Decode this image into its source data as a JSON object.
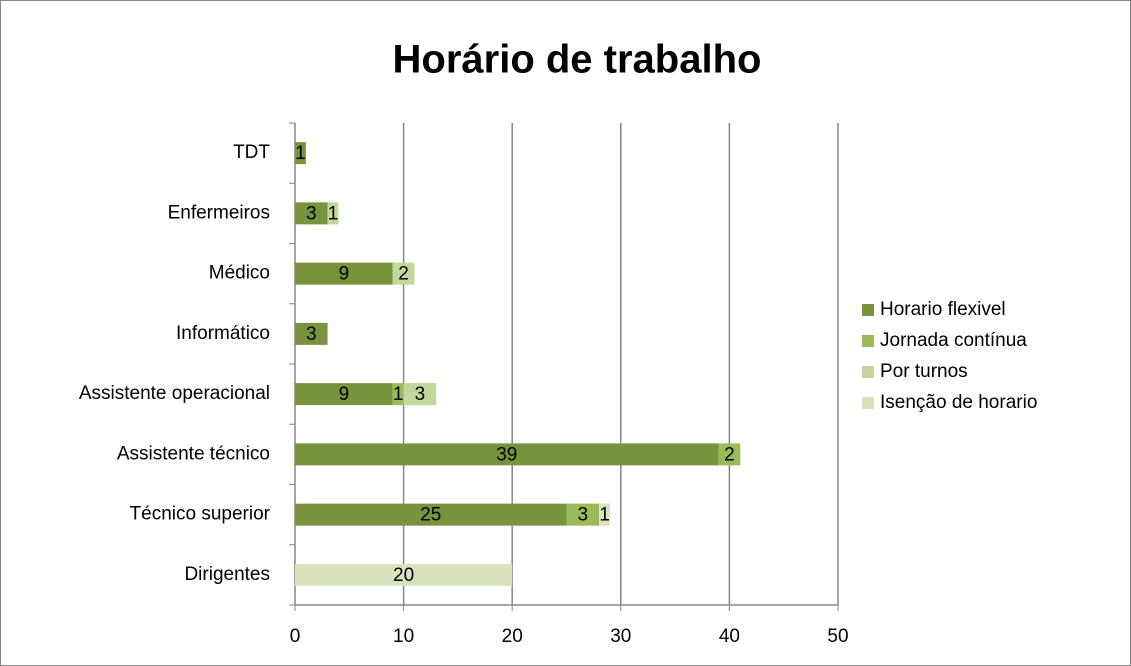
{
  "chart_data": {
    "type": "stacked_barh",
    "title": "Horário de trabalho",
    "categories": [
      "Dirigentes",
      "Técnico superior",
      "Assistente técnico",
      "Assistente operacional",
      "Informático",
      "Médico",
      "Enfermeiros",
      "TDT"
    ],
    "series": [
      {
        "name": "Horario flexivel",
        "color": "#77933c",
        "values": [
          null,
          25,
          39,
          9,
          3,
          9,
          3,
          1
        ]
      },
      {
        "name": "Jornada contínua",
        "color": "#9bbb59",
        "values": [
          null,
          3,
          2,
          1,
          null,
          null,
          null,
          null
        ]
      },
      {
        "name": "Por turnos",
        "color": "#c3d69b",
        "values": [
          null,
          null,
          null,
          3,
          null,
          2,
          1,
          null
        ]
      },
      {
        "name": "Isenção de horario",
        "color": "#d7e4bd",
        "values": [
          20,
          1,
          null,
          null,
          null,
          null,
          null,
          null
        ]
      }
    ],
    "xlim": [
      0,
      50
    ],
    "xticks": [
      0,
      10,
      20,
      30,
      40,
      50
    ],
    "grid": true,
    "legend": "right"
  }
}
